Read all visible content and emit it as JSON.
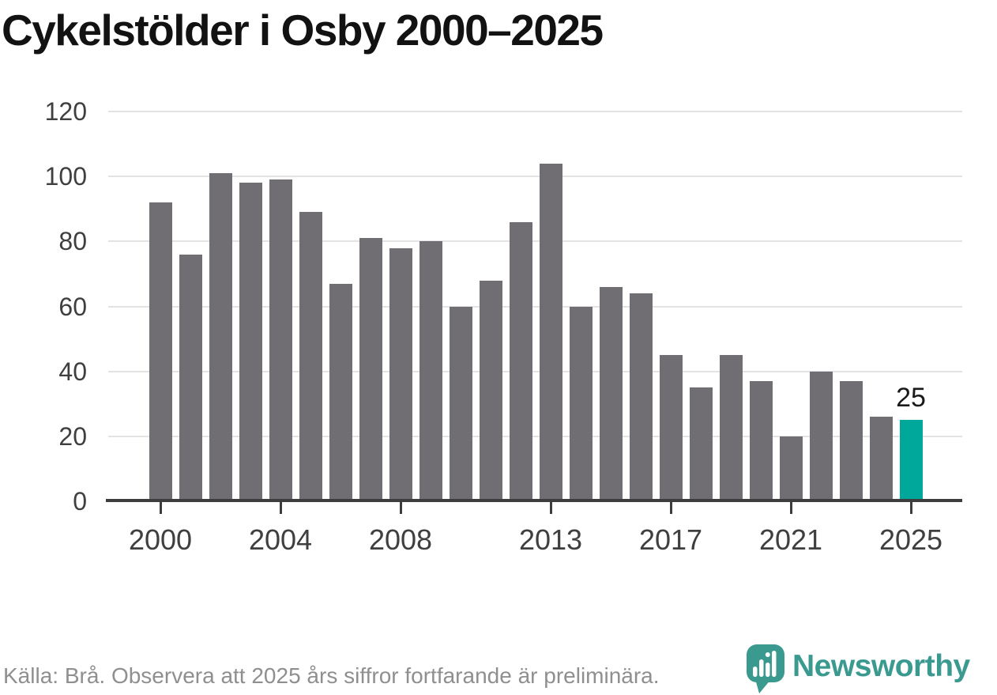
{
  "title": "Cykelstölder i Osby 2000–2025",
  "footer": {
    "source_note": "Källa: Brå. Observera att 2025 års siffror fortfarande är preliminära."
  },
  "branding": {
    "wordmark": "Newsworthy",
    "icon": "newsworthy-pin-barchart-icon"
  },
  "colors": {
    "bar_default": "#706d73",
    "bar_highlight": "#00a79b",
    "logo_teal": "#3b9a90",
    "axis": "#3d3d3d",
    "gridline": "#e3e3e3",
    "tick_label": "#3f3f3f",
    "footer_text": "#8f8f8f",
    "title_text": "#121212",
    "bar_label_text": "#1a1a1a"
  },
  "chart_data": {
    "type": "bar",
    "title": "Cykelstölder i Osby 2000–2025",
    "xlabel": "",
    "ylabel": "",
    "x": [
      2000,
      2001,
      2002,
      2003,
      2004,
      2005,
      2006,
      2007,
      2008,
      2009,
      2010,
      2011,
      2012,
      2013,
      2014,
      2015,
      2016,
      2017,
      2018,
      2019,
      2020,
      2021,
      2022,
      2023,
      2024,
      2025
    ],
    "values": [
      92,
      76,
      101,
      98,
      99,
      89,
      67,
      81,
      78,
      80,
      60,
      68,
      86,
      104,
      60,
      66,
      64,
      45,
      35,
      45,
      37,
      20,
      40,
      37,
      26,
      25
    ],
    "highlight_index": 25,
    "bar_label": {
      "index": 25,
      "text": "25"
    },
    "ylim": [
      0,
      120
    ],
    "yticks": [
      0,
      20,
      40,
      60,
      80,
      100,
      120
    ],
    "xticks": [
      2000,
      2004,
      2008,
      2013,
      2017,
      2021,
      2025
    ],
    "grid": true,
    "legend": false
  }
}
